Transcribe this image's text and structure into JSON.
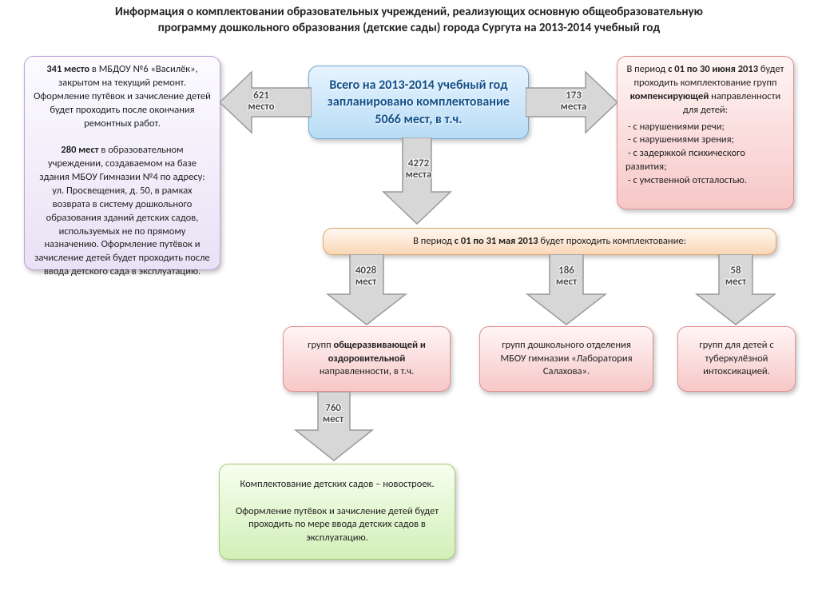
{
  "title_line1": "Информация о комплектовании образовательных учреждений, реализующих основную общеобразовательную",
  "title_line2": "программу дошкольного образования (детские сады) города Сургута на 2013-2014 учебный год",
  "central": "Всего на 2013-2014 учебный год запланировано комплектование 5066 мест, в т.ч.",
  "left_box_html": "<b>341 место</b> в МБДОУ №6 «Василёк», закрытом на текущий ремонт. Оформление путёвок и зачисление детей будет проходить после окончания ремонтных работ.<br><br><b>280 мест</b> в образовательном учреждении, создаваемом на базе здания МБОУ Гимназии №4 по адресу: ул. Просвещения, д. 50, в рамках возврата в систему дошкольного образования зданий детских садов, используемых не по прямому назначению. Оформление путёвок и зачисление детей будет проходить после ввода детского сада в эксплуатацию.",
  "right_box_html": "В период <b>с 01 по 30 июня 2013</b> будет проходить комплектование групп <b>компенсирующей</b> направленности для детей:<div style='text-align:left;margin-top:4px;'>&nbsp;- с нарушениями речи;<br>&nbsp;- с нарушениями зрения;<br>&nbsp;- с задержкой психического развития;<br>&nbsp;- с умственной отсталостью.</div>",
  "period_may_html": "В период <b>с 01 по 31 мая 2013</b> будет проходить комплектование:",
  "group1_html": "групп <b>общеразвивающей и оздоровительной</b> направленности, в т.ч.",
  "group2_html": "групп дошкольного отделения МБОУ гимназии «Лаборатория Салахова».",
  "group3_html": "групп для детей с туберкулёзной интоксикацией.",
  "green_box_html": "Комплектование детских садов – новостроек.<br><br>Оформление путёвок и зачисление детей будет проходить по мере ввода детских садов в эксплуатацию.",
  "arrows": {
    "left": {
      "n": "621",
      "unit": "место"
    },
    "right": {
      "n": "173",
      "unit": "места"
    },
    "down1": {
      "n": "4272",
      "unit": "места"
    },
    "g1": {
      "n": "4028",
      "unit": "мест"
    },
    "g2": {
      "n": "186",
      "unit": "мест"
    },
    "g3": {
      "n": "58",
      "unit": "мест"
    },
    "sub": {
      "n": "760",
      "unit": "мест"
    }
  },
  "style": {
    "arrow_fill": "#d7d7d7",
    "arrow_stroke": "#9a9a9a",
    "title_fontsize": 15,
    "box_fontsize": 12.5,
    "central_fontsize": 16
  }
}
